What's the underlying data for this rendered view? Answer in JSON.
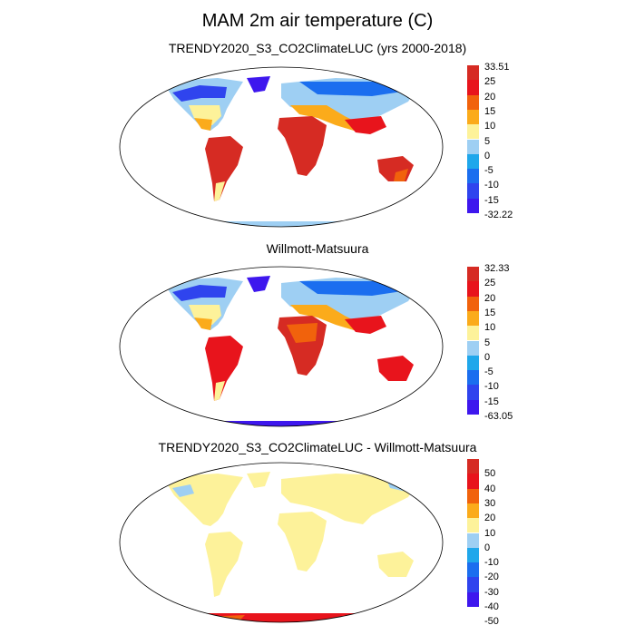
{
  "figure": {
    "title": "MAM 2m air temperature (C)"
  },
  "panels": [
    {
      "id": "model",
      "title": "TRENDY2020_S3_CO2ClimateLUC (yrs 2000-2018)",
      "colorbar": {
        "colors": [
          "#d62b23",
          "#e8141c",
          "#f1620c",
          "#fbab1b",
          "#fdf29a",
          "#9ecff3",
          "#1fa7eb",
          "#1b6eef",
          "#2f44ee",
          "#3e17ee"
        ],
        "labels": [
          "33.51",
          "25",
          "20",
          "15",
          "10",
          "5",
          "0",
          "-5",
          "-10",
          "-15",
          "-32.22"
        ]
      }
    },
    {
      "id": "obs",
      "title": "Willmott-Matsuura",
      "colorbar": {
        "colors": [
          "#d62b23",
          "#e8141c",
          "#f1620c",
          "#fbab1b",
          "#fdf29a",
          "#9ecff3",
          "#1fa7eb",
          "#1b6eef",
          "#2f44ee",
          "#3e17ee"
        ],
        "labels": [
          "32.33",
          "25",
          "20",
          "15",
          "10",
          "5",
          "0",
          "-5",
          "-10",
          "-15",
          "-63.05"
        ]
      }
    },
    {
      "id": "diff",
      "title": "TRENDY2020_S3_CO2ClimateLUC - Willmott-Matsuura",
      "colorbar": {
        "colors": [
          "#d62b23",
          "#e8141c",
          "#f1620c",
          "#fbab1b",
          "#fdf29a",
          "#9ecff3",
          "#1fa7eb",
          "#1b6eef",
          "#2f44ee",
          "#3e17ee"
        ],
        "labels": [
          "50",
          "40",
          "30",
          "20",
          "10",
          "0",
          "-10",
          "-20",
          "-30",
          "-40",
          "-50"
        ]
      }
    }
  ]
}
